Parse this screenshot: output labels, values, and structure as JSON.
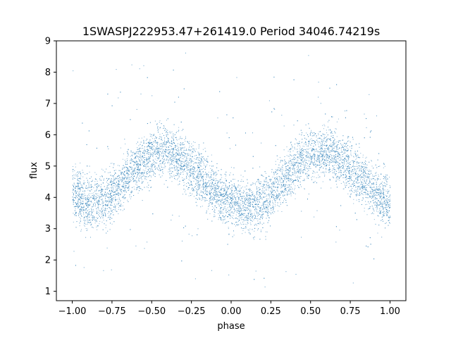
{
  "chart_data": {
    "type": "scatter",
    "title": "1SWASPJ222953.47+261419.0 Period 34046.74219s",
    "xlabel": "phase",
    "ylabel": "flux",
    "xlim": [
      -1.1,
      1.1
    ],
    "ylim": [
      0.7,
      9.0
    ],
    "xticks": [
      -1.0,
      -0.75,
      -0.5,
      -0.25,
      0.0,
      0.25,
      0.5,
      0.75,
      1.0
    ],
    "xtick_labels": [
      "−1.00",
      "−0.75",
      "−0.50",
      "−0.25",
      "0.00",
      "0.25",
      "0.50",
      "0.75",
      "1.00"
    ],
    "yticks": [
      1,
      2,
      3,
      4,
      5,
      6,
      7,
      8,
      9
    ],
    "ytick_labels": [
      "1",
      "2",
      "3",
      "4",
      "5",
      "6",
      "7",
      "8",
      "9"
    ],
    "grid": false,
    "legend": "none",
    "point_color": "#1f77b4",
    "phase_range": [
      -1.0,
      1.0
    ],
    "light_curve": {
      "phase": [
        -1.0,
        -0.9,
        -0.8,
        -0.7,
        -0.6,
        -0.5,
        -0.4,
        -0.3,
        -0.2,
        -0.1,
        0.0,
        0.1,
        0.2,
        0.3,
        0.4,
        0.5,
        0.6,
        0.7,
        0.8,
        0.9,
        1.0
      ],
      "flux": [
        4.2,
        3.8,
        3.9,
        4.4,
        5.0,
        5.4,
        5.5,
        5.2,
        4.7,
        4.2,
        3.85,
        3.7,
        3.85,
        4.4,
        5.0,
        5.4,
        5.5,
        5.2,
        4.7,
        4.2,
        3.8
      ],
      "scatter_halfwidth": 0.75
    }
  }
}
